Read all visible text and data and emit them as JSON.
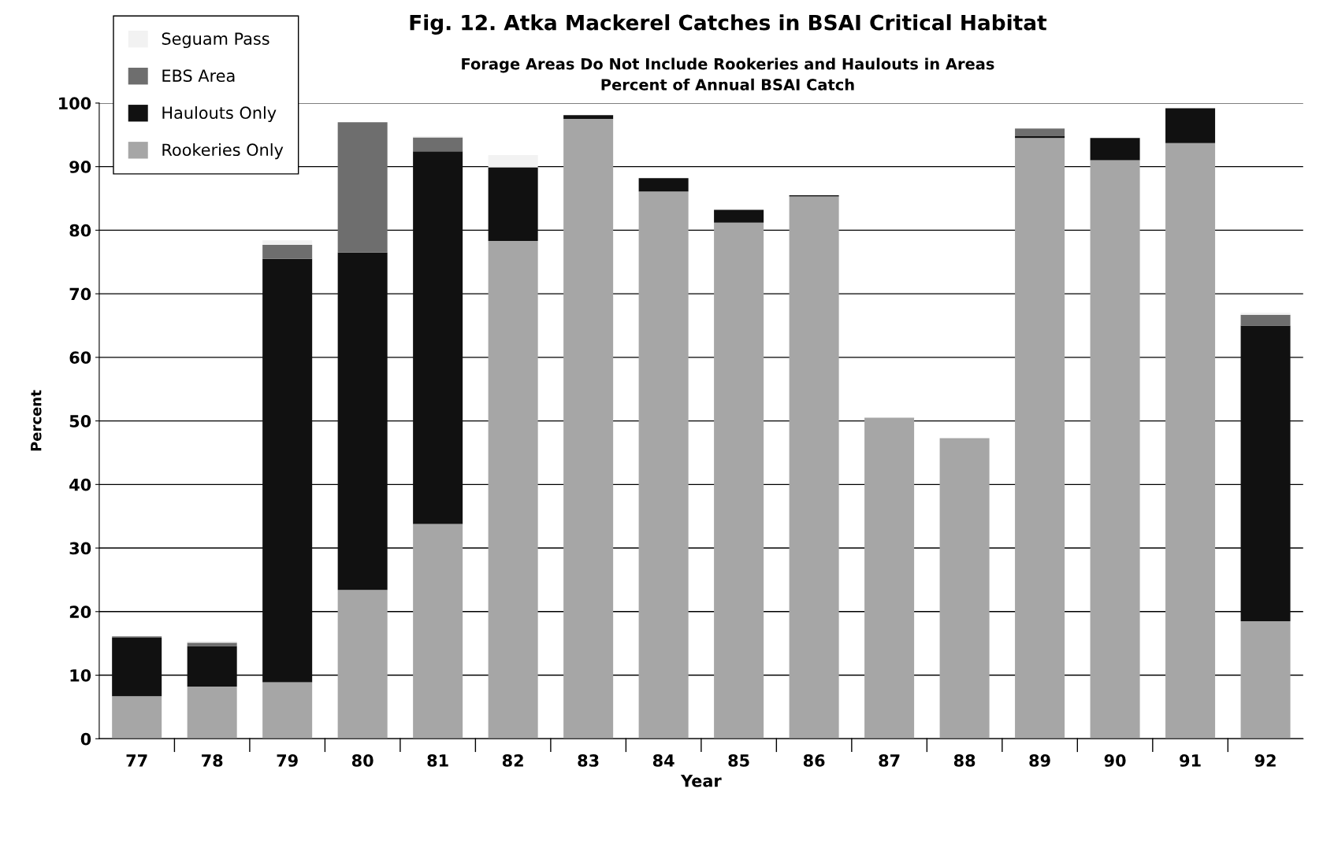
{
  "chart_data": {
    "type": "bar",
    "stacked": true,
    "title": "Fig. 12. Atka Mackerel Catches in BSAI Critical Habitat",
    "subtitle": "Forage Areas Do Not Include Rookeries and Haulouts in Areas\nPercent of Annual BSAI Catch",
    "xlabel": "Year",
    "ylabel": "Percent",
    "categories": [
      "77",
      "78",
      "79",
      "80",
      "81",
      "82",
      "83",
      "84",
      "85",
      "86",
      "87",
      "88",
      "89",
      "90",
      "91",
      "92"
    ],
    "series": [
      {
        "name": "Rookeries Only",
        "color": "#a6a6a6",
        "values": [
          6.7,
          8.2,
          8.9,
          23.4,
          33.8,
          78.3,
          97.5,
          86.1,
          81.2,
          85.3,
          50.5,
          47.3,
          94.5,
          91.0,
          93.7,
          18.5
        ]
      },
      {
        "name": "Haulouts Only",
        "color": "#111111",
        "values": [
          9.2,
          6.4,
          66.6,
          53.1,
          58.6,
          11.6,
          0.6,
          2.1,
          2.0,
          0.2,
          0,
          0,
          0.3,
          3.5,
          5.5,
          46.5
        ]
      },
      {
        "name": "EBS Area",
        "color": "#6e6e6e",
        "values": [
          0.2,
          0.5,
          2.2,
          20.5,
          2.2,
          0,
          0,
          0,
          0,
          0,
          0,
          0,
          1.2,
          0,
          0,
          1.7
        ]
      },
      {
        "name": "Seguam Pass",
        "color": "#f2f2f2",
        "values": [
          0,
          0.3,
          0.7,
          0,
          0.2,
          1.9,
          0,
          0,
          0,
          0,
          0,
          0,
          0,
          0,
          0,
          0.3
        ]
      }
    ],
    "ylim": [
      0,
      100
    ],
    "yticks": [
      0,
      10,
      20,
      30,
      40,
      50,
      60,
      70,
      80,
      90,
      100
    ],
    "grid": "y",
    "legend": "top left"
  }
}
